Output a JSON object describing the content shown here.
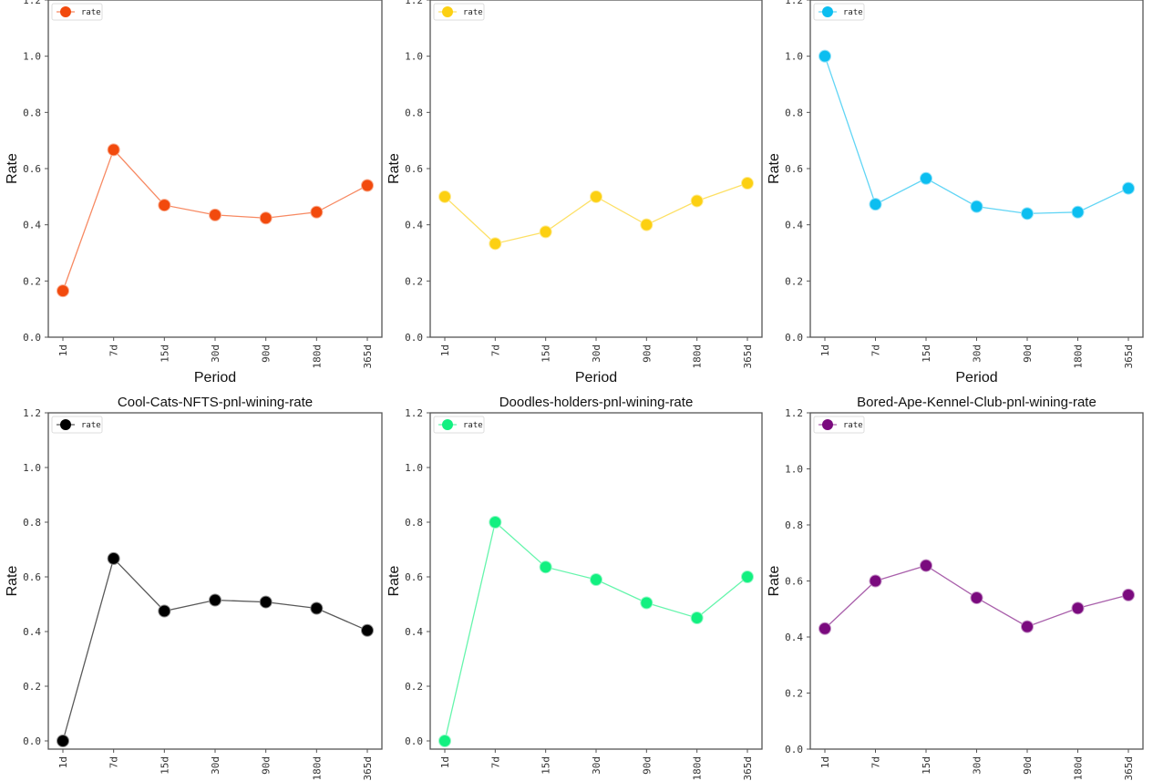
{
  "chart_data": [
    {
      "type": "line",
      "title": "",
      "xlabel": "Period",
      "ylabel": "Rate",
      "categories": [
        "1d",
        "7d",
        "15d",
        "30d",
        "90d",
        "180d",
        "365d"
      ],
      "series": [
        {
          "name": "rate",
          "color": "#f24a0d",
          "values": [
            0.165,
            0.667,
            0.47,
            0.435,
            0.424,
            0.445,
            0.54
          ]
        }
      ],
      "ylim": [
        0,
        1.2
      ],
      "yticks": [
        "0.0",
        "0.2",
        "0.4",
        "0.6",
        "0.8",
        "1.0",
        "1.2"
      ],
      "grid": false,
      "legend": "top-left"
    },
    {
      "type": "line",
      "title": "",
      "xlabel": "Period",
      "ylabel": "Rate",
      "categories": [
        "1d",
        "7d",
        "15d",
        "30d",
        "90d",
        "180d",
        "365d"
      ],
      "series": [
        {
          "name": "rate",
          "color": "#fcd012",
          "values": [
            0.5,
            0.333,
            0.375,
            0.5,
            0.4,
            0.485,
            0.548
          ]
        }
      ],
      "ylim": [
        0,
        1.2
      ],
      "yticks": [
        "0.0",
        "0.2",
        "0.4",
        "0.6",
        "0.8",
        "1.0",
        "1.2"
      ],
      "grid": false,
      "legend": "top-left"
    },
    {
      "type": "line",
      "title": "",
      "xlabel": "Period",
      "ylabel": "Rate",
      "categories": [
        "1d",
        "7d",
        "15d",
        "30d",
        "90d",
        "180d",
        "365d"
      ],
      "series": [
        {
          "name": "rate",
          "color": "#0cbef0",
          "values": [
            1.0,
            0.473,
            0.565,
            0.465,
            0.44,
            0.445,
            0.53
          ]
        }
      ],
      "ylim": [
        0,
        1.2
      ],
      "yticks": [
        "0.0",
        "0.2",
        "0.4",
        "0.6",
        "0.8",
        "1.0",
        "1.2"
      ],
      "grid": false,
      "legend": "top-left"
    },
    {
      "type": "line",
      "title": "Cool-Cats-NFTS-pnl-wining-rate",
      "xlabel": "",
      "ylabel": "Rate",
      "categories": [
        "1d",
        "7d",
        "15d",
        "30d",
        "90d",
        "180d",
        "365d"
      ],
      "series": [
        {
          "name": "rate",
          "color": "#000000",
          "values": [
            0.0,
            0.667,
            0.475,
            0.515,
            0.508,
            0.485,
            0.404
          ]
        }
      ],
      "ylim": [
        -0.03,
        1.2
      ],
      "yticks": [
        "0.0",
        "0.2",
        "0.4",
        "0.6",
        "0.8",
        "1.0",
        "1.2"
      ],
      "grid": false,
      "legend": "top-left"
    },
    {
      "type": "line",
      "title": "Doodles-holders-pnl-wining-rate",
      "xlabel": "",
      "ylabel": "Rate",
      "categories": [
        "1d",
        "7d",
        "15d",
        "30d",
        "90d",
        "180d",
        "365d"
      ],
      "series": [
        {
          "name": "rate",
          "color": "#12f080",
          "values": [
            0.0,
            0.8,
            0.636,
            0.59,
            0.505,
            0.45,
            0.6
          ]
        }
      ],
      "ylim": [
        -0.03,
        1.2
      ],
      "yticks": [
        "0.0",
        "0.2",
        "0.4",
        "0.6",
        "0.8",
        "1.0",
        "1.2"
      ],
      "grid": false,
      "legend": "top-left"
    },
    {
      "type": "line",
      "title": "Bored-Ape-Kennel-Club-pnl-wining-rate",
      "xlabel": "",
      "ylabel": "Rate",
      "categories": [
        "1d",
        "7d",
        "15d",
        "30d",
        "90d",
        "180d",
        "365d"
      ],
      "series": [
        {
          "name": "rate",
          "color": "#7a0a7e",
          "values": [
            0.43,
            0.6,
            0.655,
            0.54,
            0.437,
            0.503,
            0.55
          ]
        }
      ],
      "ylim": [
        0,
        1.2
      ],
      "yticks": [
        "0.0",
        "0.2",
        "0.4",
        "0.6",
        "0.8",
        "1.0",
        "1.2"
      ],
      "grid": false,
      "legend": "top-left"
    }
  ]
}
